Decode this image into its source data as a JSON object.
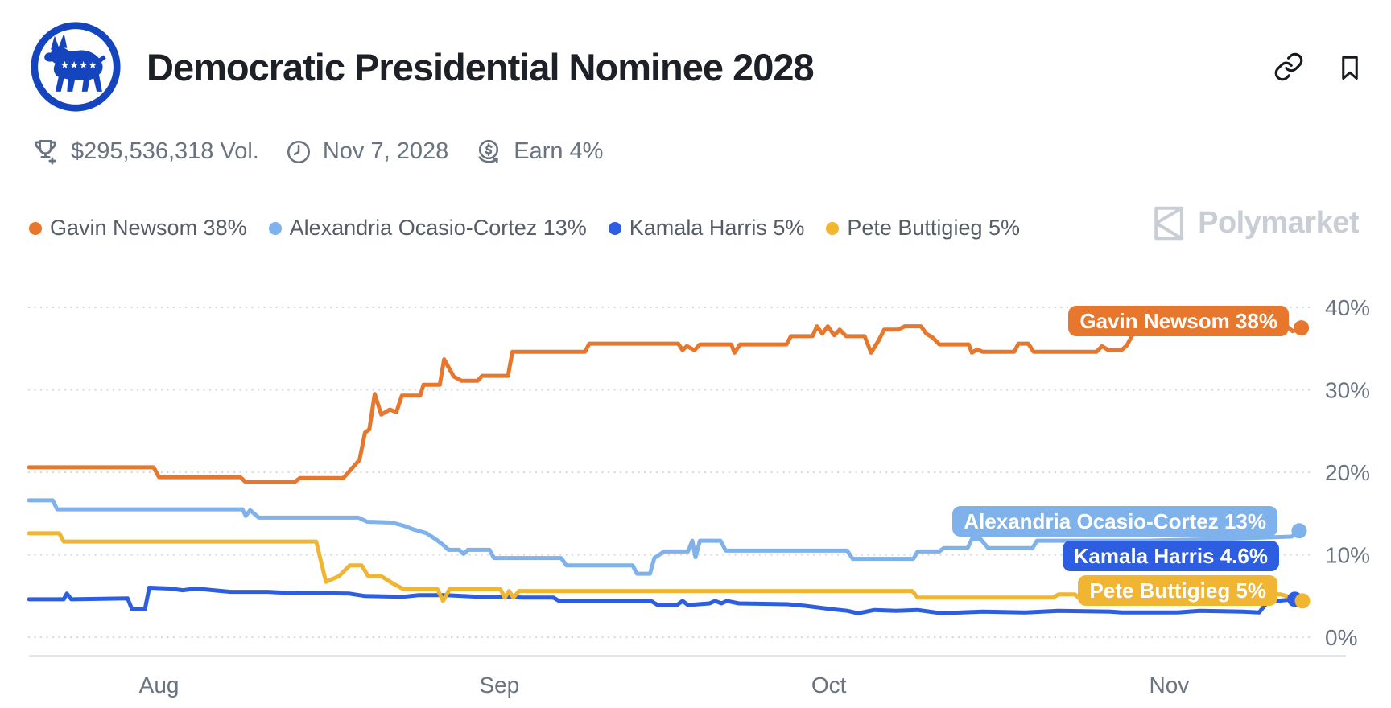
{
  "header": {
    "title": "Democratic Presidential Nominee 2028",
    "icons": [
      "democratic-donkey-logo",
      "link-icon",
      "bookmark-icon"
    ]
  },
  "stats": {
    "volume": "$295,536,318 Vol.",
    "volume_icon": "trophy-plus-icon",
    "end_date": "Nov 7, 2028",
    "end_date_icon": "clock-icon",
    "earn": "Earn 4%",
    "earn_icon": "earn-dollar-icon"
  },
  "legend": {
    "items": [
      {
        "label": "Gavin Newsom 38%",
        "color": "#E8772E"
      },
      {
        "label": "Alexandria Ocasio-Cortez 13%",
        "color": "#7FB1EA"
      },
      {
        "label": "Kamala Harris 5%",
        "color": "#2D5EE2"
      },
      {
        "label": "Pete Buttigieg 5%",
        "color": "#F0B532"
      }
    ]
  },
  "watermark": {
    "text": "Polymarket",
    "icon": "polymarket-logo-icon",
    "color": "#C9CDD6"
  },
  "colors": {
    "logo_blue": "#1545BE",
    "title_text": "#1D2127",
    "stats_text": "#6A7380",
    "axis_text": "#6A7380",
    "gridline": "#D6D9DE",
    "axis_line": "#E4E6E9"
  },
  "chart_data": {
    "type": "line",
    "title": "Democratic Presidential Nominee 2028",
    "grid": "dotted-horizontal",
    "legend_position": "top-left",
    "x_axis": {
      "unit": "date",
      "domain_days": [
        0,
        117.5
      ],
      "ticks": [
        {
          "label": "Aug",
          "day": 12
        },
        {
          "label": "Sep",
          "day": 43.4
        },
        {
          "label": "Oct",
          "day": 73.8
        },
        {
          "label": "Nov",
          "day": 105.2
        }
      ]
    },
    "y_axis": {
      "unit": "percent",
      "range": [
        0,
        43
      ],
      "ticks": [
        {
          "label": "0%",
          "value": 0
        },
        {
          "label": "10%",
          "value": 10
        },
        {
          "label": "20%",
          "value": 20
        },
        {
          "label": "30%",
          "value": 30
        },
        {
          "label": "40%",
          "value": 40
        }
      ]
    },
    "series": [
      {
        "name": "Alexandria Ocasio-Cortez",
        "color": "#7FB1EA",
        "end_label": "Alexandria Ocasio-Cortez 13%",
        "end_value": 13,
        "points": [
          [
            0,
            16.6
          ],
          [
            2.2,
            16.6
          ],
          [
            2.6,
            15.5
          ],
          [
            19.7,
            15.5
          ],
          [
            20,
            14.7
          ],
          [
            20.4,
            15.4
          ],
          [
            21.2,
            14.5
          ],
          [
            30.4,
            14.5
          ],
          [
            31.2,
            14
          ],
          [
            33.5,
            13.9
          ],
          [
            34.6,
            13.5
          ],
          [
            35.4,
            13.1
          ],
          [
            36.7,
            12.6
          ],
          [
            37.5,
            11.9
          ],
          [
            38.3,
            11.1
          ],
          [
            38.7,
            10.6
          ],
          [
            39.7,
            10.6
          ],
          [
            40.1,
            10.1
          ],
          [
            40.5,
            10.6
          ],
          [
            42.5,
            10.6
          ],
          [
            42.9,
            9.6
          ],
          [
            49.1,
            9.6
          ],
          [
            49.6,
            8.7
          ],
          [
            55.7,
            8.7
          ],
          [
            56.1,
            7.7
          ],
          [
            57.3,
            7.7
          ],
          [
            57.7,
            9.6
          ],
          [
            58.6,
            10.4
          ],
          [
            60.8,
            10.4
          ],
          [
            61.2,
            11.7
          ],
          [
            61.5,
            9.7
          ],
          [
            61.9,
            11.7
          ],
          [
            63.8,
            11.7
          ],
          [
            64.3,
            10.5
          ],
          [
            75.5,
            10.5
          ],
          [
            76,
            9.5
          ],
          [
            81.6,
            9.5
          ],
          [
            82,
            10.4
          ],
          [
            84,
            10.4
          ],
          [
            84.4,
            10.8
          ],
          [
            86.6,
            10.8
          ],
          [
            87,
            11.9
          ],
          [
            87.8,
            11.9
          ],
          [
            88.5,
            10.8
          ],
          [
            92.6,
            10.8
          ],
          [
            93,
            11.7
          ],
          [
            103,
            11.7
          ],
          [
            110,
            11.9
          ],
          [
            116.5,
            12.2
          ],
          [
            117.2,
            12.9
          ]
        ]
      },
      {
        "name": "Kamala Harris",
        "color": "#2D5EE2",
        "end_label": "Kamala Harris 4.6%",
        "end_value": 4.6,
        "points": [
          [
            0,
            4.6
          ],
          [
            3.2,
            4.6
          ],
          [
            3.5,
            5.3
          ],
          [
            3.9,
            4.6
          ],
          [
            9.1,
            4.7
          ],
          [
            9.5,
            3.4
          ],
          [
            10.7,
            3.4
          ],
          [
            11.1,
            6
          ],
          [
            13,
            5.9
          ],
          [
            14.2,
            5.7
          ],
          [
            15.4,
            5.9
          ],
          [
            17,
            5.7
          ],
          [
            18.6,
            5.5
          ],
          [
            22,
            5.5
          ],
          [
            23.5,
            5.4
          ],
          [
            29.5,
            5.3
          ],
          [
            31,
            5
          ],
          [
            34.5,
            4.9
          ],
          [
            36,
            5.1
          ],
          [
            38.5,
            5.1
          ],
          [
            41.5,
            4.9
          ],
          [
            44,
            4.9
          ],
          [
            45.5,
            4.8
          ],
          [
            48.4,
            4.8
          ],
          [
            48.9,
            4.4
          ],
          [
            57.4,
            4.4
          ],
          [
            58,
            3.9
          ],
          [
            59.8,
            3.9
          ],
          [
            60.3,
            4.4
          ],
          [
            60.8,
            3.9
          ],
          [
            62.8,
            4.1
          ],
          [
            63.3,
            4.4
          ],
          [
            63.9,
            4.1
          ],
          [
            64.4,
            4.4
          ],
          [
            65.5,
            4.1
          ],
          [
            70,
            4
          ],
          [
            71.6,
            3.8
          ],
          [
            74,
            3.4
          ],
          [
            75.5,
            3.2
          ],
          [
            76.5,
            2.9
          ],
          [
            78,
            3.3
          ],
          [
            80,
            3.2
          ],
          [
            82,
            3.3
          ],
          [
            84.2,
            2.9
          ],
          [
            88,
            3.1
          ],
          [
            92,
            3
          ],
          [
            95,
            3.2
          ],
          [
            99.8,
            3.1
          ],
          [
            100.8,
            3
          ],
          [
            106,
            3
          ],
          [
            108,
            3.2
          ],
          [
            112,
            3.1
          ],
          [
            113.5,
            3
          ],
          [
            114.3,
            4.3
          ],
          [
            116.8,
            4.6
          ]
        ]
      },
      {
        "name": "Pete Buttigieg",
        "color": "#F0B532",
        "end_label": "Pete Buttigieg 5%",
        "end_value": 5,
        "points": [
          [
            0,
            12.6
          ],
          [
            2.8,
            12.6
          ],
          [
            3.2,
            11.6
          ],
          [
            26.5,
            11.6
          ],
          [
            27.4,
            6.7
          ],
          [
            28.6,
            7.4
          ],
          [
            29.6,
            8.7
          ],
          [
            30.7,
            8.7
          ],
          [
            31.3,
            7.4
          ],
          [
            32.5,
            7.4
          ],
          [
            33.6,
            6.5
          ],
          [
            34.6,
            5.8
          ],
          [
            37.7,
            5.8
          ],
          [
            38.2,
            4.4
          ],
          [
            38.8,
            5.8
          ],
          [
            43.5,
            5.8
          ],
          [
            43.9,
            4.8
          ],
          [
            44.3,
            5.6
          ],
          [
            44.7,
            4.8
          ],
          [
            45.2,
            5.6
          ],
          [
            75,
            5.6
          ],
          [
            81.5,
            5.6
          ],
          [
            82,
            4.8
          ],
          [
            94.5,
            4.8
          ],
          [
            95,
            5.2
          ],
          [
            96.5,
            5.2
          ],
          [
            97,
            4.6
          ],
          [
            98.3,
            4.6
          ],
          [
            99,
            5.6
          ],
          [
            112,
            5.4
          ],
          [
            115.5,
            5.2
          ],
          [
            117.5,
            4.4
          ]
        ]
      },
      {
        "name": "Gavin Newsom",
        "color": "#E8772E",
        "end_label": "Gavin Newsom 38%",
        "end_value": 38,
        "points": [
          [
            0,
            20.6
          ],
          [
            11.5,
            20.6
          ],
          [
            12,
            19.4
          ],
          [
            19.5,
            19.4
          ],
          [
            20,
            18.8
          ],
          [
            24.5,
            18.8
          ],
          [
            25,
            19.3
          ],
          [
            29,
            19.3
          ],
          [
            30.5,
            21.5
          ],
          [
            31,
            24.8
          ],
          [
            31.4,
            25.2
          ],
          [
            31.9,
            29.5
          ],
          [
            32.5,
            27
          ],
          [
            33.3,
            27.6
          ],
          [
            33.9,
            27.3
          ],
          [
            34.4,
            29.3
          ],
          [
            36.1,
            29.3
          ],
          [
            36.4,
            30.6
          ],
          [
            37.9,
            30.6
          ],
          [
            38.3,
            33.7
          ],
          [
            39.2,
            31.6
          ],
          [
            39.9,
            31.1
          ],
          [
            41.4,
            31.1
          ],
          [
            41.8,
            31.7
          ],
          [
            44.2,
            31.7
          ],
          [
            44.6,
            34.6
          ],
          [
            51.3,
            34.6
          ],
          [
            51.7,
            35.6
          ],
          [
            59.9,
            35.6
          ],
          [
            60.3,
            34.8
          ],
          [
            60.7,
            35.3
          ],
          [
            61.4,
            34.8
          ],
          [
            61.9,
            35.5
          ],
          [
            64.8,
            35.5
          ],
          [
            65.1,
            34.5
          ],
          [
            65.6,
            35.5
          ],
          [
            69.9,
            35.5
          ],
          [
            70.3,
            36.5
          ],
          [
            72.3,
            36.5
          ],
          [
            72.7,
            37.7
          ],
          [
            73.2,
            36.8
          ],
          [
            73.7,
            37.7
          ],
          [
            74.3,
            36.6
          ],
          [
            74.8,
            37.3
          ],
          [
            75.4,
            36.5
          ],
          [
            77.1,
            36.5
          ],
          [
            77.7,
            34.5
          ],
          [
            78.4,
            36
          ],
          [
            78.9,
            37.3
          ],
          [
            80.2,
            37.3
          ],
          [
            80.8,
            37.7
          ],
          [
            82.3,
            37.7
          ],
          [
            82.8,
            36.8
          ],
          [
            83.4,
            36.3
          ],
          [
            84,
            35.5
          ],
          [
            86.7,
            35.5
          ],
          [
            87,
            34.5
          ],
          [
            87.5,
            34.9
          ],
          [
            88,
            34.6
          ],
          [
            90.9,
            34.6
          ],
          [
            91.3,
            35.6
          ],
          [
            92.2,
            35.6
          ],
          [
            92.7,
            34.6
          ],
          [
            98.5,
            34.6
          ],
          [
            99,
            35.3
          ],
          [
            99.6,
            34.8
          ],
          [
            100.8,
            34.8
          ],
          [
            101.3,
            35.4
          ],
          [
            102.3,
            37.8
          ],
          [
            116,
            37.8
          ],
          [
            116.6,
            37.1
          ],
          [
            117.4,
            37.5
          ]
        ]
      }
    ]
  }
}
